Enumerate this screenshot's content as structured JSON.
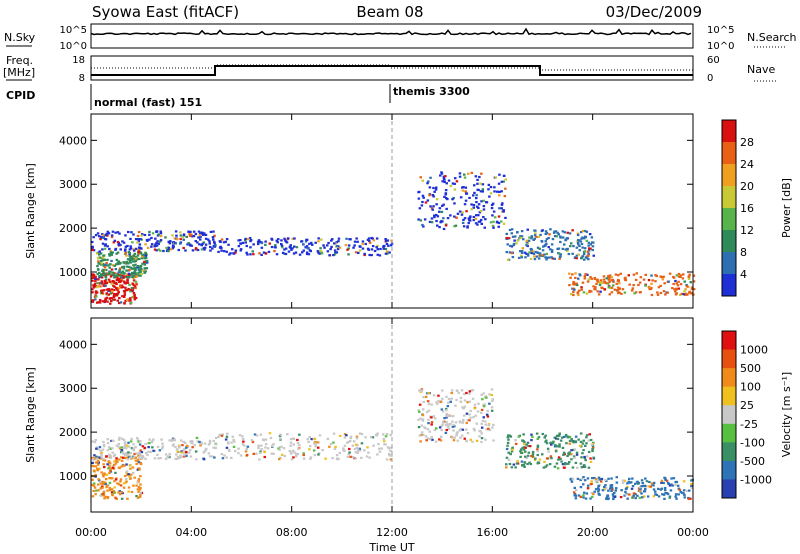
{
  "header": {
    "station": "Syowa East (fitACF)",
    "beam": "Beam 08",
    "date": "03/Dec/2009"
  },
  "strip": {
    "nsky_label": "N.Sky",
    "nsearch_label": "N.Search",
    "freq_label_1": "Freq.",
    "freq_label_2": "[MHz]",
    "nave_label": "Nave",
    "cpid_label": "CPID",
    "nsky_ticks": [
      "10^5",
      "10^0"
    ],
    "nsearch_ticks": [
      "10^5",
      "10^0"
    ],
    "freq_ticks": [
      "18",
      "8"
    ],
    "nave_ticks": [
      "60",
      "0"
    ],
    "cpid_blocks": [
      {
        "text": "normal (fast) 151",
        "start_h": 0,
        "end_h": 12
      },
      {
        "text": "themis 3300",
        "start_h": 12,
        "end_h": 24
      }
    ]
  },
  "chart_data": [
    {
      "type": "heatmap",
      "title": "",
      "xlabel": "Time UT",
      "ylabel": "Slant Range [km]",
      "x_ticks": [
        "00:00",
        "04:00",
        "08:00",
        "12:00",
        "16:00",
        "20:00",
        "00:00"
      ],
      "y_ticks": [
        "1000",
        "2000",
        "3000",
        "4000"
      ],
      "xlim_hours": [
        0,
        24
      ],
      "ylim_km": [
        180,
        4600
      ],
      "colorbar_label": "Power [dB]",
      "colorbar_ticks": [
        "4",
        "8",
        "12",
        "16",
        "20",
        "24",
        "28"
      ],
      "colorbar_colors": [
        "#1f2fd6",
        "#2d6fb0",
        "#2f8a5a",
        "#58b34a",
        "#c9c935",
        "#f0a020",
        "#e86016",
        "#d81010"
      ],
      "scatter_regions": [
        {
          "t0": 0.0,
          "t1": 1.8,
          "r0": 300,
          "r1": 1000,
          "color": "#d81010"
        },
        {
          "t0": 0.2,
          "t1": 2.2,
          "r0": 900,
          "r1": 1500,
          "color": "#2f8a5a"
        },
        {
          "t0": 0.0,
          "t1": 5.0,
          "r0": 1500,
          "r1": 1950,
          "color": "#1f2fd6"
        },
        {
          "t0": 5.0,
          "t1": 12.0,
          "r0": 1400,
          "r1": 1800,
          "color": "#1f2fd6"
        },
        {
          "t0": 13.0,
          "t1": 16.5,
          "r0": 2000,
          "r1": 3300,
          "color": "#1f2fd6"
        },
        {
          "t0": 16.5,
          "t1": 20.0,
          "r0": 1300,
          "r1": 2000,
          "color": "#2d6fb0"
        },
        {
          "t0": 19.0,
          "t1": 24.0,
          "r0": 500,
          "r1": 1000,
          "color": "#e86016"
        }
      ]
    },
    {
      "type": "heatmap",
      "title": "",
      "xlabel": "Time UT",
      "ylabel": "Slant Range [km]",
      "x_ticks": [
        "00:00",
        "04:00",
        "08:00",
        "12:00",
        "16:00",
        "20:00",
        "00:00"
      ],
      "y_ticks": [
        "1000",
        "2000",
        "3000",
        "4000"
      ],
      "xlim_hours": [
        0,
        24
      ],
      "ylim_km": [
        180,
        4600
      ],
      "colorbar_label": "Velocity [m s⁻¹]",
      "colorbar_ticks": [
        "1000",
        "500",
        "100",
        "25",
        "-25",
        "-100",
        "-500",
        "-1000"
      ],
      "colorbar_colors": [
        "#2a3fb0",
        "#2d73b5",
        "#3a8f64",
        "#58c040",
        "#c8c8c8",
        "#f0c020",
        "#f08a1a",
        "#e85010",
        "#e01010"
      ],
      "scatter_regions": [
        {
          "t0": 0.0,
          "t1": 2.0,
          "r0": 500,
          "r1": 1500,
          "color": "#f08a1a"
        },
        {
          "t0": 0.0,
          "t1": 5.0,
          "r0": 1400,
          "r1": 1900,
          "color": "#c8c8c8"
        },
        {
          "t0": 5.0,
          "t1": 12.0,
          "r0": 1400,
          "r1": 2000,
          "color": "#c8c8c8"
        },
        {
          "t0": 13.0,
          "t1": 16.0,
          "r0": 1800,
          "r1": 3000,
          "color": "#c8c8c8"
        },
        {
          "t0": 16.5,
          "t1": 20.0,
          "r0": 1200,
          "r1": 2000,
          "color": "#3a8f64"
        },
        {
          "t0": 19.0,
          "t1": 24.0,
          "r0": 500,
          "r1": 1000,
          "color": "#2d73b5"
        }
      ]
    }
  ]
}
